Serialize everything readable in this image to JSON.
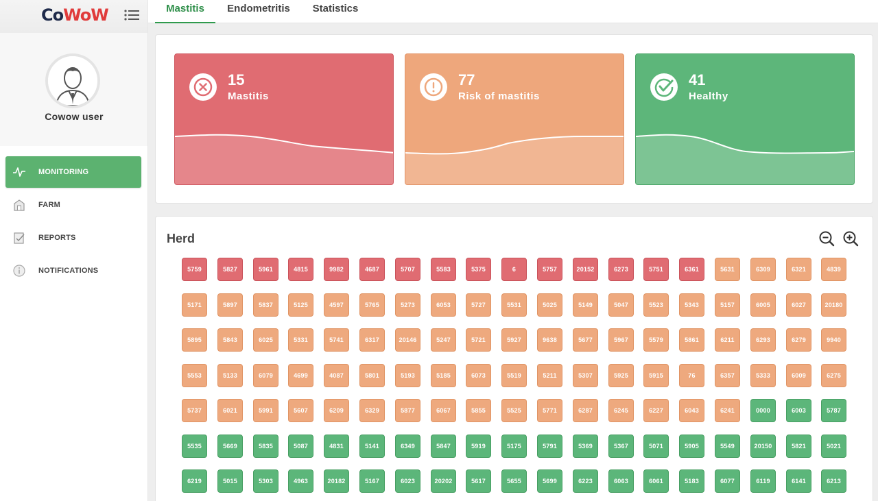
{
  "app": {
    "logo_part1": "Co",
    "logo_part2": "WoW",
    "logo_color_dark": "#1e2a4a",
    "logo_color_accent": "#e03b3b",
    "menu_icon": "menu-icon"
  },
  "user": {
    "name": "Cowow user",
    "avatar_icon": "user-avatar-icon"
  },
  "nav": {
    "items": [
      {
        "label": "MONITORING",
        "icon": "pulse-icon",
        "active": true
      },
      {
        "label": "FARM",
        "icon": "barn-icon",
        "active": false
      },
      {
        "label": "REPORTS",
        "icon": "report-icon",
        "active": false
      },
      {
        "label": "NOTIFICATIONS",
        "icon": "info-icon",
        "active": false
      }
    ]
  },
  "tabs": [
    {
      "label": "Mastitis",
      "active": true
    },
    {
      "label": "Endometritis",
      "active": false
    },
    {
      "label": "Statistics",
      "active": false
    }
  ],
  "summary": {
    "cards": [
      {
        "value": "15",
        "label": "Mastitis",
        "icon": "x-circle-icon",
        "color": "#e06c72"
      },
      {
        "value": "77",
        "label": "Risk of mastitis",
        "icon": "alert-circle-icon",
        "color": "#eea77c"
      },
      {
        "value": "41",
        "label": "Healthy",
        "icon": "check-circle-icon",
        "color": "#5db67a"
      }
    ]
  },
  "herd": {
    "title": "Herd",
    "zoom_out_icon": "zoom-out-icon",
    "zoom_in_icon": "zoom-in-icon",
    "status_colors": {
      "mastitis": "#e06c72",
      "risk": "#eea97e",
      "healthy": "#5cb67a"
    },
    "rows": [
      [
        [
          "5759",
          "mastitis"
        ],
        [
          "5827",
          "mastitis"
        ],
        [
          "5961",
          "mastitis"
        ],
        [
          "4815",
          "mastitis"
        ],
        [
          "9982",
          "mastitis"
        ],
        [
          "4687",
          "mastitis"
        ],
        [
          "5707",
          "mastitis"
        ],
        [
          "5583",
          "mastitis"
        ],
        [
          "5375",
          "mastitis"
        ],
        [
          "6",
          "mastitis"
        ],
        [
          "5757",
          "mastitis"
        ],
        [
          "20152",
          "mastitis"
        ],
        [
          "6273",
          "mastitis"
        ],
        [
          "5751",
          "mastitis"
        ],
        [
          "6361",
          "mastitis"
        ],
        [
          "5631",
          "risk"
        ],
        [
          "6309",
          "risk"
        ],
        [
          "6321",
          "risk"
        ],
        [
          "4839",
          "risk"
        ]
      ],
      [
        [
          "5171",
          "risk"
        ],
        [
          "5897",
          "risk"
        ],
        [
          "5837",
          "risk"
        ],
        [
          "5125",
          "risk"
        ],
        [
          "4597",
          "risk"
        ],
        [
          "5765",
          "risk"
        ],
        [
          "5273",
          "risk"
        ],
        [
          "6053",
          "risk"
        ],
        [
          "5727",
          "risk"
        ],
        [
          "5531",
          "risk"
        ],
        [
          "5025",
          "risk"
        ],
        [
          "5149",
          "risk"
        ],
        [
          "5047",
          "risk"
        ],
        [
          "5523",
          "risk"
        ],
        [
          "5343",
          "risk"
        ],
        [
          "5157",
          "risk"
        ],
        [
          "6005",
          "risk"
        ],
        [
          "6027",
          "risk"
        ],
        [
          "20180",
          "risk"
        ]
      ],
      [
        [
          "5895",
          "risk"
        ],
        [
          "5843",
          "risk"
        ],
        [
          "6025",
          "risk"
        ],
        [
          "5331",
          "risk"
        ],
        [
          "5741",
          "risk"
        ],
        [
          "6317",
          "risk"
        ],
        [
          "20146",
          "risk"
        ],
        [
          "5247",
          "risk"
        ],
        [
          "5721",
          "risk"
        ],
        [
          "5927",
          "risk"
        ],
        [
          "9638",
          "risk"
        ],
        [
          "5677",
          "risk"
        ],
        [
          "5967",
          "risk"
        ],
        [
          "5579",
          "risk"
        ],
        [
          "5861",
          "risk"
        ],
        [
          "6211",
          "risk"
        ],
        [
          "6293",
          "risk"
        ],
        [
          "6279",
          "risk"
        ],
        [
          "9940",
          "risk"
        ]
      ],
      [
        [
          "5553",
          "risk"
        ],
        [
          "5133",
          "risk"
        ],
        [
          "6079",
          "risk"
        ],
        [
          "4699",
          "risk"
        ],
        [
          "4087",
          "risk"
        ],
        [
          "5801",
          "risk"
        ],
        [
          "5193",
          "risk"
        ],
        [
          "5185",
          "risk"
        ],
        [
          "6073",
          "risk"
        ],
        [
          "5519",
          "risk"
        ],
        [
          "5211",
          "risk"
        ],
        [
          "5307",
          "risk"
        ],
        [
          "5925",
          "risk"
        ],
        [
          "5915",
          "risk"
        ],
        [
          "76",
          "risk"
        ],
        [
          "6357",
          "risk"
        ],
        [
          "5333",
          "risk"
        ],
        [
          "6009",
          "risk"
        ],
        [
          "6275",
          "risk"
        ]
      ],
      [
        [
          "5737",
          "risk"
        ],
        [
          "6021",
          "risk"
        ],
        [
          "5991",
          "risk"
        ],
        [
          "5607",
          "risk"
        ],
        [
          "6209",
          "risk"
        ],
        [
          "6329",
          "risk"
        ],
        [
          "5877",
          "risk"
        ],
        [
          "6067",
          "risk"
        ],
        [
          "5855",
          "risk"
        ],
        [
          "5525",
          "risk"
        ],
        [
          "5771",
          "risk"
        ],
        [
          "6287",
          "risk"
        ],
        [
          "6245",
          "risk"
        ],
        [
          "6227",
          "risk"
        ],
        [
          "6043",
          "risk"
        ],
        [
          "6241",
          "risk"
        ],
        [
          "0000",
          "healthy"
        ],
        [
          "6003",
          "healthy"
        ],
        [
          "5787",
          "healthy"
        ]
      ],
      [
        [
          "5535",
          "healthy"
        ],
        [
          "5669",
          "healthy"
        ],
        [
          "5835",
          "healthy"
        ],
        [
          "5087",
          "healthy"
        ],
        [
          "4831",
          "healthy"
        ],
        [
          "5141",
          "healthy"
        ],
        [
          "6349",
          "healthy"
        ],
        [
          "5847",
          "healthy"
        ],
        [
          "5919",
          "healthy"
        ],
        [
          "5175",
          "healthy"
        ],
        [
          "5791",
          "healthy"
        ],
        [
          "5369",
          "healthy"
        ],
        [
          "5367",
          "healthy"
        ],
        [
          "5071",
          "healthy"
        ],
        [
          "5905",
          "healthy"
        ],
        [
          "5549",
          "healthy"
        ],
        [
          "20150",
          "healthy"
        ],
        [
          "5821",
          "healthy"
        ],
        [
          "5021",
          "healthy"
        ]
      ],
      [
        [
          "6219",
          "healthy"
        ],
        [
          "5015",
          "healthy"
        ],
        [
          "5303",
          "healthy"
        ],
        [
          "4963",
          "healthy"
        ],
        [
          "20182",
          "healthy"
        ],
        [
          "5167",
          "healthy"
        ],
        [
          "6023",
          "healthy"
        ],
        [
          "20202",
          "healthy"
        ],
        [
          "5617",
          "healthy"
        ],
        [
          "5655",
          "healthy"
        ],
        [
          "5699",
          "healthy"
        ],
        [
          "6223",
          "healthy"
        ],
        [
          "6063",
          "healthy"
        ],
        [
          "6061",
          "healthy"
        ],
        [
          "5183",
          "healthy"
        ],
        [
          "6077",
          "healthy"
        ],
        [
          "6119",
          "healthy"
        ],
        [
          "6141",
          "healthy"
        ],
        [
          "6213",
          "healthy"
        ]
      ]
    ]
  }
}
